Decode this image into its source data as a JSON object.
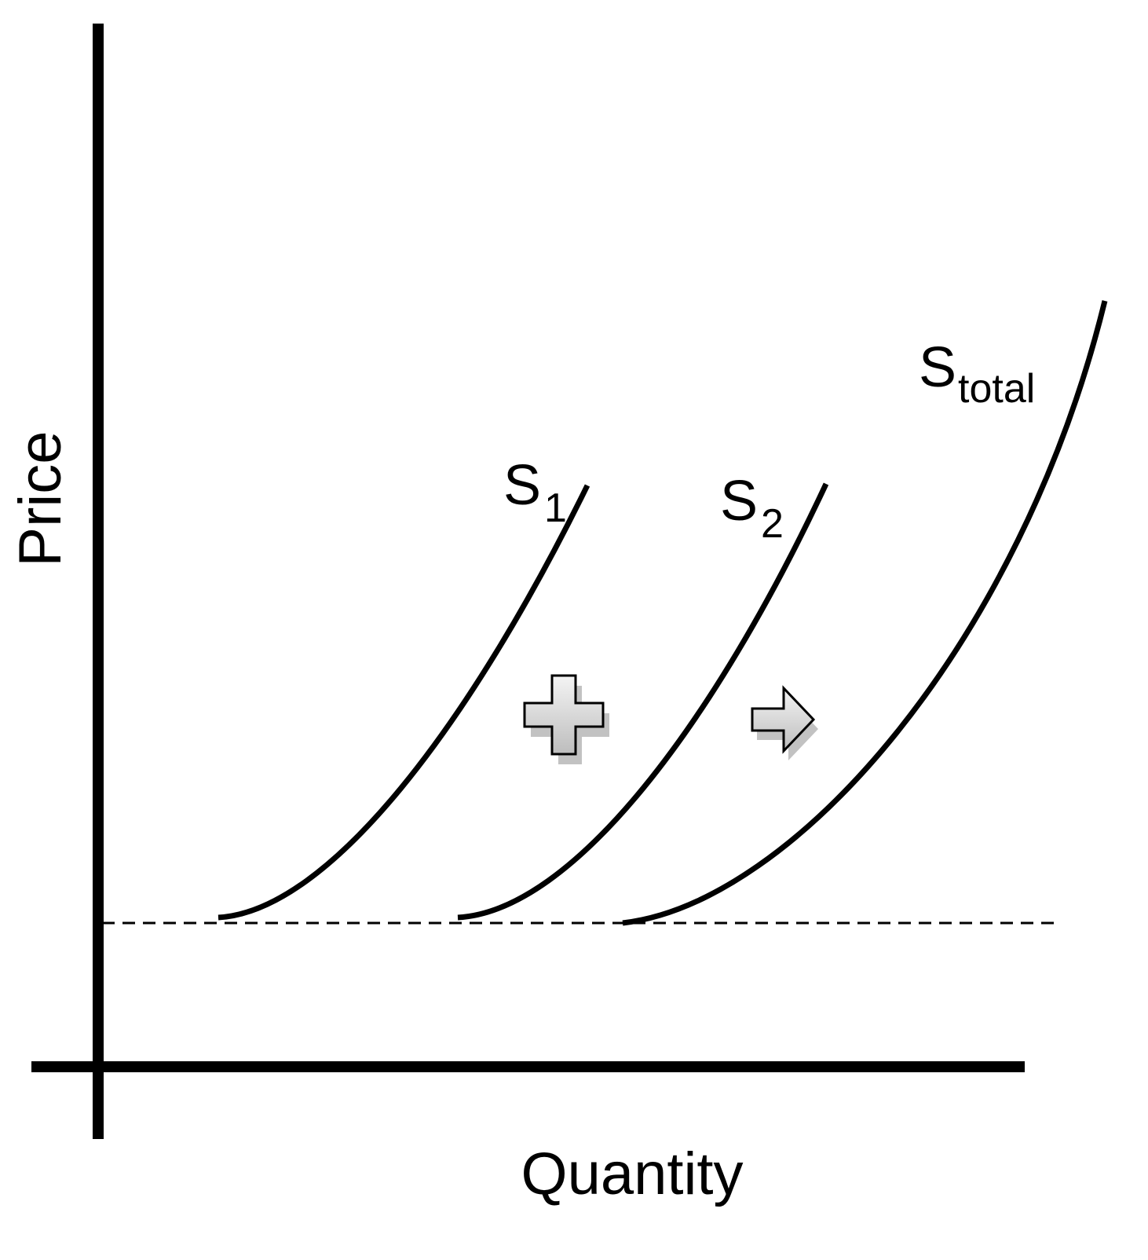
{
  "axes": {
    "y_label": "Price",
    "x_label": "Quantity"
  },
  "curves": [
    {
      "label": {
        "main": "S",
        "sub": "1"
      }
    },
    {
      "label": {
        "main": "S",
        "sub": "2"
      }
    },
    {
      "label": {
        "main": "S",
        "sub": "total"
      }
    }
  ]
}
